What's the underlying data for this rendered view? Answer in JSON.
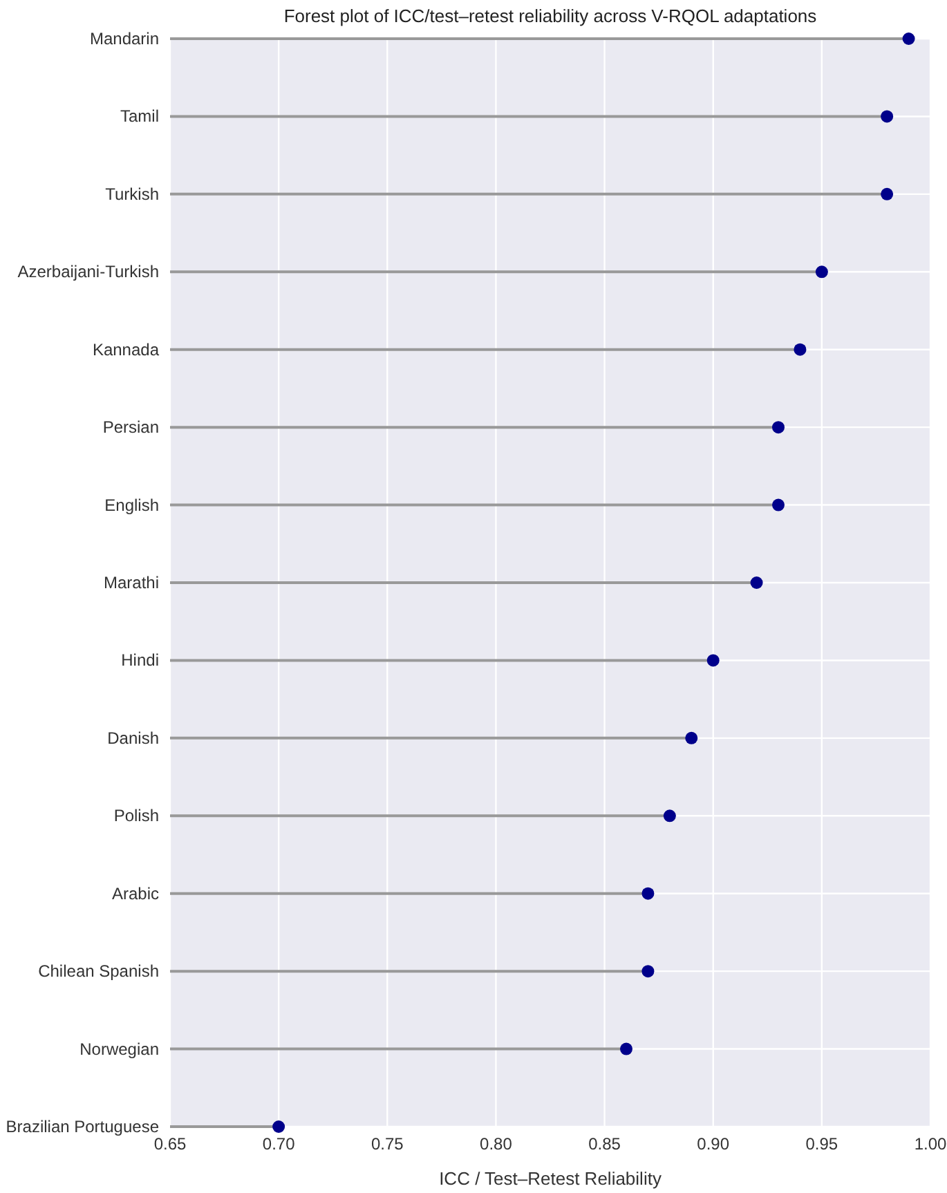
{
  "chart_data": {
    "type": "lollipop",
    "orientation": "horizontal",
    "title": "Forest plot of ICC/test–retest reliability across V-RQOL adaptations",
    "xlabel": "ICC / Test–Retest Reliability",
    "categories": [
      "Mandarin",
      "Tamil",
      "Turkish",
      "Azerbaijani-Turkish",
      "Kannada",
      "Persian",
      "English",
      "Marathi",
      "Hindi",
      "Danish",
      "Polish",
      "Arabic",
      "Chilean Spanish",
      "Norwegian",
      "Brazilian Portuguese"
    ],
    "values": [
      0.99,
      0.98,
      0.98,
      0.95,
      0.94,
      0.93,
      0.93,
      0.92,
      0.9,
      0.89,
      0.88,
      0.87,
      0.87,
      0.86,
      0.7
    ],
    "color": "#00008b",
    "xlim": [
      0.65,
      1.0
    ],
    "xticks": [
      0.65,
      {
        "value": 0.7,
        "label": "0.70"
      },
      0.75,
      {
        "value": 0.8,
        "label": "0.80"
      },
      0.85,
      {
        "value": 0.9,
        "label": "0.90"
      },
      0.95,
      {
        "value": 1,
        "label": "1.00"
      }
    ],
    "grid": true,
    "marker": "circle"
  }
}
